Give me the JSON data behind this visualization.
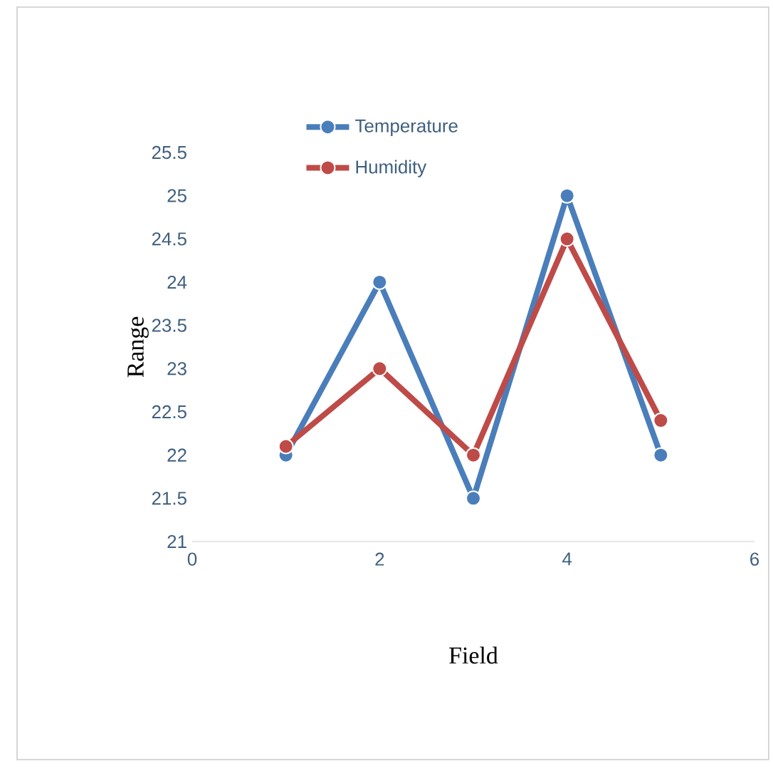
{
  "chart_data": {
    "type": "line",
    "xlabel": "Field",
    "ylabel": "Range",
    "x": [
      1,
      2,
      3,
      4,
      5
    ],
    "series": [
      {
        "name": "Temperature",
        "color": "#4a7ebb",
        "values": [
          22,
          24,
          21.5,
          25,
          22
        ]
      },
      {
        "name": "Humidity",
        "color": "#be4b48",
        "values": [
          22.1,
          23,
          22,
          24.5,
          22.4
        ]
      }
    ],
    "xlim": [
      0,
      6
    ],
    "xticks": [
      0,
      2,
      4,
      6
    ],
    "ylim": [
      21,
      25.5
    ],
    "yticks": [
      21,
      21.5,
      22,
      22.5,
      23,
      23.5,
      24,
      24.5,
      25,
      25.5
    ],
    "marker": "circle",
    "line_style": "solid",
    "legend": "top",
    "grid": false
  }
}
